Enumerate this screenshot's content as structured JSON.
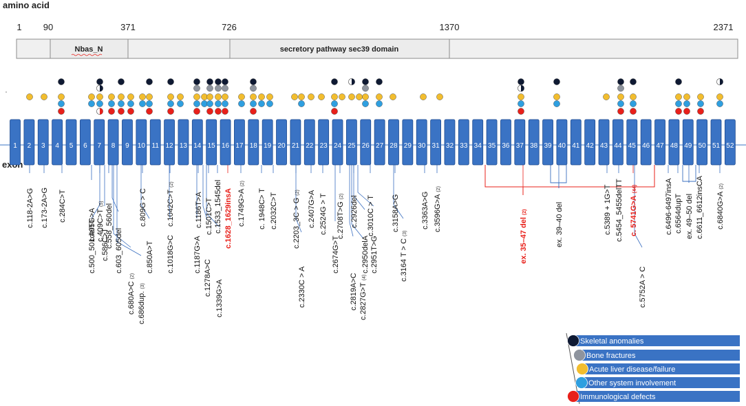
{
  "title": "amino acid",
  "exon_title": "exon",
  "aa_positions": [
    "1",
    "90",
    "371",
    "726",
    "1370",
    "2371"
  ],
  "domains": [
    {
      "name": "Nbas_N"
    },
    {
      "name": "secretory pathway sec39 domain"
    }
  ],
  "exons": [
    "1",
    "2",
    "3",
    "4",
    "5",
    "6",
    "7",
    "8",
    "9",
    "10",
    "11",
    "12",
    "13",
    "14",
    "15",
    "16",
    "17",
    "18",
    "19",
    "20",
    "21",
    "22",
    "23",
    "24",
    "25",
    "26",
    "27",
    "28",
    "29",
    "30",
    "31",
    "32",
    "33",
    "34",
    "35",
    "36",
    "37",
    "38",
    "39",
    "40",
    "41",
    "42",
    "43",
    "44",
    "45",
    "46",
    "47",
    "48",
    "49",
    "50",
    "51",
    "52"
  ],
  "phenotypes": {
    "1": "Skeletal anomalies",
    "2": "Bone fractures",
    "3": "Acute liver disease/failure",
    "4": "Other system involvement",
    "5": "Immunological defects"
  },
  "colors": {
    "exon": "#3a73c4",
    "exon_stroke": "#1f4b8f",
    "skeletal": "#0f1a33",
    "bone": "#8e949e",
    "liver": "#f2bd2e",
    "other": "#2e9fe0",
    "immuno": "#e8201a",
    "legend_bar": "#3a73c4",
    "red_text": "#e8201a"
  },
  "mutations_upper": [
    {
      "t": "c.118-2A>G"
    },
    {
      "t": "c.173-2A>G"
    },
    {
      "t": "c.284C>T"
    },
    {
      "t": "c.405G>A"
    },
    {
      "t": "c.409C>T",
      "n": "(5)"
    },
    {
      "t": "c.558_560del"
    },
    {
      "t": "c.809G > C"
    },
    {
      "t": "c.1042C>T",
      "n": "(2)"
    },
    {
      "t": "c.1186T>A"
    },
    {
      "t": "c.1501C>T"
    },
    {
      "t": "c.1533_1545del"
    },
    {
      "t": "c.1628_1629insA"
    },
    {
      "t": "c.1749G>A",
      "n": "(2)"
    },
    {
      "t": "c. 1948C> T"
    },
    {
      "t": "c.2032C>T"
    },
    {
      "t": "c.2203_3C > G",
      "n": "(2)"
    },
    {
      "t": "c.2407G>A"
    },
    {
      "t": "c.2524G > T"
    },
    {
      "t": "c.2708T>G",
      "n": "(2)"
    },
    {
      "t": "c.2926del"
    },
    {
      "t": "c.3010C > T"
    },
    {
      "t": "c.3158A>G"
    },
    {
      "t": "c.3363A>G"
    },
    {
      "t": "c.3596G>A",
      "n": "(2)"
    },
    {
      "t": "ex. 35–47 del",
      "n": "(2)"
    },
    {
      "t": "ex. 39–40 del"
    },
    {
      "t": "c.5389 + 1G>T"
    },
    {
      "t": "c.5454_5455delTT"
    },
    {
      "t": "c. 5741G>A",
      "n": "(44)"
    },
    {
      "t": "c.6496-6497insA"
    },
    {
      "t": "c.6564dupT"
    },
    {
      "t": "ex. 49–50 del"
    },
    {
      "t": "c.6611_6612insCA"
    },
    {
      "t": "c.6840G>A",
      "n": "(2)"
    }
  ],
  "mutations_lower": [
    {
      "t": "c.500_501delTT"
    },
    {
      "t": "c.586C>T"
    },
    {
      "t": "c.603_605del"
    },
    {
      "t": "c.680A>C",
      "n": "(2)"
    },
    {
      "t": "c.686dup.",
      "n": "(3)"
    },
    {
      "t": "c.850A>T"
    },
    {
      "t": "c.1018G>C"
    },
    {
      "t": "c.1187G>A"
    },
    {
      "t": "c.1278A>C"
    },
    {
      "t": "c.1339G>A"
    },
    {
      "t": "c.2330C > A"
    },
    {
      "t": "c.2674G>T"
    },
    {
      "t": "c.2819A>C"
    },
    {
      "t": "c.2827G>T",
      "n": "(4)"
    },
    {
      "t": "c.2950delA"
    },
    {
      "t": "c.2951T>G"
    },
    {
      "t": "c.3164 T > C",
      "n": "(3)"
    },
    {
      "t": "c.5752A > C"
    }
  ],
  "legend": [
    "Skeletal anomalies",
    "Bone fractures",
    "Acute liver disease/failure",
    "Other system involvement",
    "Immunological defects"
  ]
}
